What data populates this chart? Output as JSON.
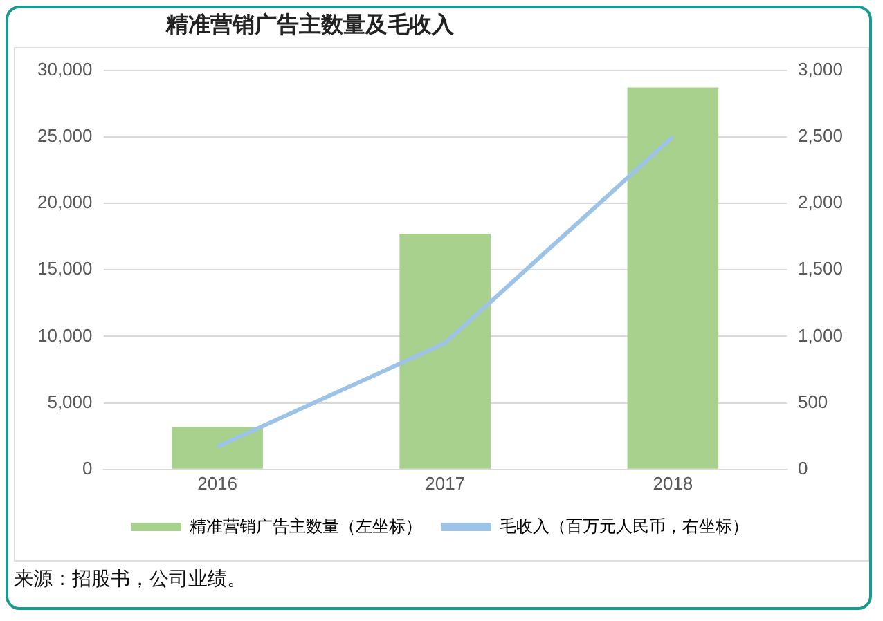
{
  "chart_data": {
    "type": "bar",
    "title": "精准营销广告主数量及毛收入",
    "categories": [
      "2016",
      "2017",
      "2018"
    ],
    "series": [
      {
        "name": "精准营销广告主数量（左坐标）",
        "color": "#a9d18e",
        "values": [
          3200,
          17700,
          28700
        ]
      },
      {
        "name": "毛收入（百万元人民币，右坐标）",
        "type": "line",
        "axis": "y2",
        "color": "#9dc3e6",
        "values": [
          170,
          950,
          2500
        ]
      }
    ],
    "ylim": [
      0,
      30000
    ],
    "yticks": [
      0,
      {
        "value": 5000,
        "label": "5,000"
      },
      {
        "value": 10000,
        "label": "10,000"
      },
      {
        "value": 15000,
        "label": "15,000"
      },
      {
        "value": 20000,
        "label": "20,000"
      },
      {
        "value": 25000,
        "label": "25,000"
      },
      {
        "value": 30000,
        "label": "30,000"
      }
    ],
    "y2lim": [
      0,
      3000
    ],
    "y2ticks": [
      0,
      500,
      {
        "value": 1000,
        "label": "1,000"
      },
      {
        "value": 1500,
        "label": "1,500"
      },
      {
        "value": 2000,
        "label": "2,000"
      },
      {
        "value": 2500,
        "label": "2,500"
      },
      {
        "value": 3000,
        "label": "3,000"
      }
    ],
    "grid": "y",
    "legend": "bottom",
    "marker": "none",
    "annotations": [
      "来源：招股书，公司业绩。"
    ]
  }
}
